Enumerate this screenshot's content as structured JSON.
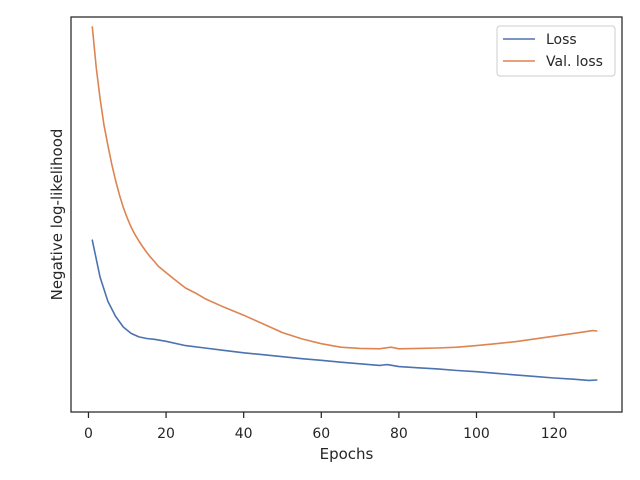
{
  "chart_data": {
    "type": "line",
    "title": "",
    "xlabel": "Epochs",
    "ylabel": "Negative log-likelihood",
    "xlim": [
      -4.5,
      137.5
    ],
    "ylim": [
      0,
      100
    ],
    "xticks": [
      0,
      20,
      40,
      60,
      80,
      100,
      120
    ],
    "yticks_visible": false,
    "grid": false,
    "legend_position": "top-right",
    "series": [
      {
        "name": "Loss",
        "color": "#4c72b0",
        "x": [
          1,
          3,
          5,
          7,
          9,
          11,
          13,
          15,
          17,
          20,
          25,
          30,
          35,
          40,
          45,
          50,
          55,
          60,
          65,
          70,
          75,
          77,
          80,
          85,
          90,
          95,
          100,
          105,
          110,
          115,
          120,
          125,
          129,
          131
        ],
        "y": [
          43.5,
          34.1,
          28.0,
          24.2,
          21.5,
          19.9,
          19.0,
          18.6,
          18.4,
          17.9,
          16.8,
          16.2,
          15.6,
          15.0,
          14.5,
          14.0,
          13.5,
          13.1,
          12.6,
          12.2,
          11.8,
          12.0,
          11.5,
          11.2,
          10.9,
          10.5,
          10.2,
          9.8,
          9.4,
          9.0,
          8.6,
          8.3,
          8.0,
          8.1
        ]
      },
      {
        "name": "Val. loss",
        "color": "#dd8452",
        "x": [
          1,
          2,
          3,
          4,
          5,
          6,
          7,
          8,
          9,
          10,
          11,
          12,
          13,
          14,
          15,
          16,
          17,
          18,
          20,
          22,
          25,
          28,
          30,
          35,
          40,
          45,
          50,
          55,
          60,
          65,
          70,
          75,
          78,
          80,
          85,
          90,
          95,
          100,
          105,
          110,
          115,
          120,
          125,
          130,
          131
        ],
        "y": [
          97.5,
          87.3,
          79.3,
          72.6,
          67.5,
          62.8,
          58.6,
          54.9,
          51.7,
          49.1,
          46.8,
          44.9,
          43.3,
          41.8,
          40.4,
          39.2,
          38.1,
          36.9,
          35.3,
          33.7,
          31.4,
          29.9,
          28.7,
          26.5,
          24.5,
          22.3,
          20.1,
          18.5,
          17.3,
          16.4,
          16.1,
          16.0,
          16.4,
          16.0,
          16.1,
          16.2,
          16.4,
          16.8,
          17.3,
          17.8,
          18.5,
          19.2,
          19.9,
          20.6,
          20.5
        ]
      }
    ]
  }
}
